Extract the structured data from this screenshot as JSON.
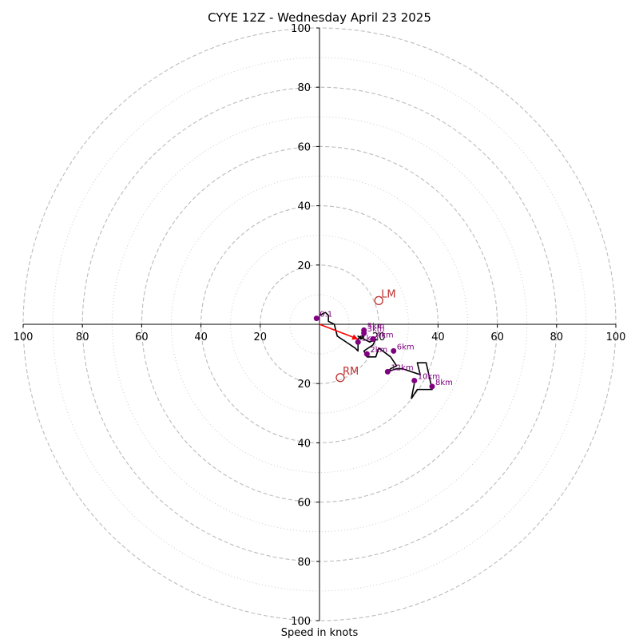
{
  "chart_data": {
    "type": "scatter",
    "title": "CYYE 12Z - Wednesday April 23 2025",
    "xlabel": "Speed in knots",
    "xlim": [
      -100,
      100
    ],
    "ylim": [
      -100,
      100
    ],
    "x_tick_labels": [
      "100",
      "80",
      "60",
      "40",
      "20",
      "20",
      "40",
      "60",
      "80",
      "100"
    ],
    "y_tick_labels": [
      "100",
      "80",
      "60",
      "40",
      "20",
      "20",
      "40",
      "60",
      "80",
      "100"
    ],
    "rings_dashed": [
      20,
      40,
      60,
      80,
      100
    ],
    "rings_dotted": [
      10,
      30,
      50,
      70,
      90
    ],
    "hodograph_line": [
      [
        0,
        3
      ],
      [
        2,
        4
      ],
      [
        3,
        3
      ],
      [
        3,
        1
      ],
      [
        5,
        0
      ],
      [
        6,
        -4
      ],
      [
        9,
        -6
      ],
      [
        12,
        -8
      ],
      [
        13,
        -9
      ],
      [
        13,
        -5
      ],
      [
        14,
        -4
      ],
      [
        15,
        -4
      ],
      [
        14,
        -5
      ],
      [
        13,
        -4
      ],
      [
        15,
        -5
      ],
      [
        17,
        -6
      ],
      [
        19,
        -5
      ],
      [
        18,
        -7
      ],
      [
        15,
        -9
      ],
      [
        16,
        -11
      ],
      [
        19,
        -11
      ],
      [
        20,
        -8
      ],
      [
        24,
        -11
      ],
      [
        26,
        -14
      ],
      [
        24,
        -15
      ],
      [
        23,
        -16
      ],
      [
        26,
        -15
      ],
      [
        28,
        -15
      ],
      [
        31,
        -16
      ],
      [
        34,
        -17
      ],
      [
        33,
        -13
      ],
      [
        36,
        -13
      ],
      [
        38,
        -22
      ],
      [
        33,
        -22
      ],
      [
        31,
        -25
      ],
      [
        32,
        -20
      ]
    ],
    "height_markers": [
      {
        "label": "0.1",
        "x": -1,
        "y": 2
      },
      {
        "label": "1km",
        "x": 13,
        "y": -6
      },
      {
        "label": "2km",
        "x": 16,
        "y": -10
      },
      {
        "label": "3km",
        "x": 15,
        "y": -3
      },
      {
        "label": "4km",
        "x": 18,
        "y": -5
      },
      {
        "label": "5km",
        "x": 15,
        "y": -2
      },
      {
        "label": "6km",
        "x": 25,
        "y": -9
      },
      {
        "label": "8km",
        "x": 38,
        "y": -21
      },
      {
        "label": "10km",
        "x": 32,
        "y": -19
      },
      {
        "label": "12km",
        "x": 23,
        "y": -16
      }
    ],
    "storm_motions": [
      {
        "label": "LM",
        "x": 20,
        "y": 8
      },
      {
        "label": "RM",
        "x": 7,
        "y": -18
      }
    ],
    "mean_wind_vector": {
      "x": 13,
      "y": -5
    },
    "colors": {
      "hodograph": "#000000",
      "markers": "#800080",
      "storm_motion": "#c03030",
      "vector": "#ff0000",
      "rings": "#bbbbbb"
    }
  }
}
